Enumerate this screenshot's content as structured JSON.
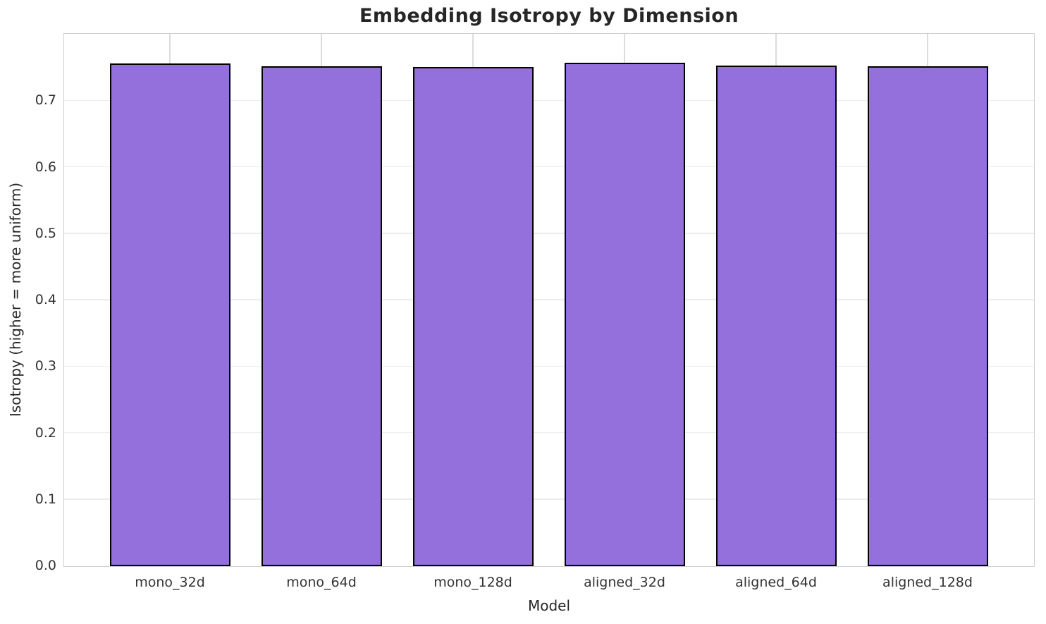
{
  "chart_data": {
    "type": "bar",
    "title": "Embedding Isotropy by Dimension",
    "xlabel": "Model",
    "ylabel": "Isotropy (higher = more uniform)",
    "categories": [
      "mono_32d",
      "mono_64d",
      "mono_128d",
      "aligned_32d",
      "aligned_64d",
      "aligned_128d"
    ],
    "values": [
      0.757,
      0.752,
      0.751,
      0.758,
      0.753,
      0.752
    ],
    "ylim": [
      0,
      0.8
    ],
    "ytick_labels": [
      "0.0",
      "0.1",
      "0.2",
      "0.3",
      "0.4",
      "0.5",
      "0.6",
      "0.7"
    ],
    "grid": true,
    "legend": false,
    "bar_color": "#9370db",
    "bar_edge_color": "#000000",
    "grid_color": "#ececec",
    "spine_color": "#cfcfcf",
    "text_color": "#262626",
    "background": "#ffffff"
  }
}
